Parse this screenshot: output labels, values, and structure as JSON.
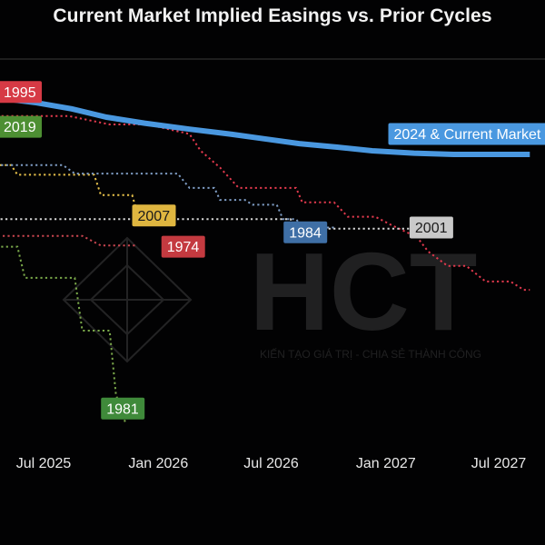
{
  "title": "Current Market Implied Easings vs. Prior Cycles",
  "watermark": {
    "text": "HCT",
    "tagline": "KIẾN TẠO GIÁ TRỊ - CHIA SẺ THÀNH CÔNG"
  },
  "chart_data": {
    "type": "line",
    "title": "Current Market Implied Easings vs. Prior Cycles",
    "xlabel": "",
    "ylabel": "",
    "x_axis": {
      "type": "date",
      "ticks": [
        "2025-07-01",
        "2026-01-01",
        "2026-07-01",
        "2027-01-01",
        "2027-07-01"
      ],
      "tick_labels": [
        "Jul 2025",
        "Jan 2026",
        "Jul 2026",
        "Jan 2027",
        "Jul 2027"
      ]
    },
    "y_axis": {
      "tick_labels_shown": false
    },
    "grid": false,
    "legend": "inline labels",
    "series": [
      {
        "name": "2024 & Current Market",
        "color": "#4a98e0",
        "style": "solid",
        "points": [
          [
            "2024-12-20",
            0.0
          ],
          [
            "2025-03-10",
            0.0
          ],
          [
            "2025-04-20",
            -0.6
          ],
          [
            "2025-06-20",
            -1.0
          ],
          [
            "2025-08-15",
            -1.5
          ],
          [
            "2025-10-10",
            -2.2
          ],
          [
            "2025-12-10",
            -2.7
          ],
          [
            "2026-02-20",
            -3.2
          ],
          [
            "2026-04-25",
            -3.6
          ],
          [
            "2026-06-20",
            -4.0
          ],
          [
            "2026-08-15",
            -4.4
          ],
          [
            "2026-10-15",
            -4.7
          ],
          [
            "2026-12-10",
            -5.0
          ],
          [
            "2027-02-15",
            -5.2
          ],
          [
            "2027-04-20",
            -5.3
          ],
          [
            "2027-08-20",
            -5.3
          ]
        ]
      },
      {
        "name": "1995",
        "color": "#e0394d",
        "style": "dotted",
        "points": [
          [
            "2024-12-20",
            -1.8
          ],
          [
            "2025-02-15",
            -1.8
          ],
          [
            "2025-04-20",
            -2.1
          ],
          [
            "2025-08-10",
            -2.1
          ],
          [
            "2025-10-15",
            -2.8
          ],
          [
            "2025-12-15",
            -2.8
          ],
          [
            "2026-02-20",
            -3.6
          ],
          [
            "2026-03-10",
            -5.0
          ],
          [
            "2026-04-10",
            -6.4
          ],
          [
            "2026-05-10",
            -8.1
          ],
          [
            "2026-08-10",
            -8.1
          ],
          [
            "2026-08-20",
            -9.3
          ],
          [
            "2026-10-10",
            -9.3
          ],
          [
            "2026-11-01",
            -10.5
          ],
          [
            "2026-12-15",
            -10.5
          ],
          [
            "2027-01-10",
            -11.2
          ],
          [
            "2027-02-20",
            -12.2
          ],
          [
            "2027-03-10",
            -13.4
          ],
          [
            "2027-04-10",
            -14.6
          ],
          [
            "2027-05-10",
            -14.6
          ],
          [
            "2027-06-10",
            -15.9
          ],
          [
            "2027-07-20",
            -15.9
          ],
          [
            "2027-08-10",
            -16.6
          ],
          [
            "2027-08-20",
            -16.6
          ]
        ]
      },
      {
        "name": "2019",
        "color": "#5a9e3a",
        "style": "dotted",
        "points": [
          [
            "2024-12-20",
            -3.2
          ],
          [
            "2025-01-10",
            -3.2
          ],
          [
            "2025-01-20",
            -5.3
          ],
          [
            "2025-02-15",
            -5.3
          ]
        ]
      },
      {
        "name": "2007",
        "color": "#e6c04a",
        "style": "dotted",
        "points": [
          [
            "2024-12-20",
            -5.0
          ],
          [
            "2025-02-01",
            -5.0
          ],
          [
            "2025-02-20",
            -6.2
          ],
          [
            "2025-05-10",
            -6.2
          ],
          [
            "2025-05-20",
            -7.0
          ],
          [
            "2025-09-20",
            -7.0
          ],
          [
            "2025-10-01",
            -8.7
          ],
          [
            "2025-11-20",
            -8.7
          ],
          [
            "2025-12-01",
            -10.7
          ],
          [
            "2026-01-10",
            -10.7
          ]
        ]
      },
      {
        "name": "1984",
        "color": "#7e9cc4",
        "style": "dotted",
        "points": [
          [
            "2024-12-20",
            -4.9
          ],
          [
            "2025-03-10",
            -4.9
          ],
          [
            "2025-04-10",
            -6.2
          ],
          [
            "2025-08-01",
            -6.2
          ],
          [
            "2025-08-20",
            -6.9
          ],
          [
            "2026-02-01",
            -6.9
          ],
          [
            "2026-02-20",
            -8.1
          ],
          [
            "2026-04-01",
            -8.1
          ],
          [
            "2026-04-10",
            -9.1
          ],
          [
            "2026-05-20",
            -9.1
          ],
          [
            "2026-06-01",
            -9.5
          ],
          [
            "2026-07-10",
            -9.5
          ],
          [
            "2026-07-20",
            -10.7
          ],
          [
            "2026-08-10",
            -10.7
          ],
          [
            "2026-08-20",
            -11.4
          ],
          [
            "2026-10-10",
            -11.4
          ]
        ]
      },
      {
        "name": "2001",
        "color": "#d6d6d6",
        "style": "dotted",
        "points": [
          [
            "2025-04-15",
            -10.7
          ],
          [
            "2025-09-15",
            -10.7
          ],
          [
            "2026-01-01",
            -10.7
          ],
          [
            "2026-08-01",
            -10.7
          ],
          [
            "2026-08-10",
            -11.5
          ],
          [
            "2027-03-20",
            -11.5
          ]
        ]
      },
      {
        "name": "1974",
        "color": "#c8454f",
        "style": "dotted",
        "points": [
          [
            "2024-12-20",
            -10.0
          ],
          [
            "2025-01-20",
            -11.6
          ],
          [
            "2025-03-01",
            -11.6
          ],
          [
            "2025-04-01",
            -12.1
          ],
          [
            "2025-09-01",
            -12.1
          ],
          [
            "2025-10-01",
            -12.9
          ],
          [
            "2025-11-25",
            -12.9
          ]
        ]
      },
      {
        "name": "1981",
        "color": "#7aa84a",
        "style": "dotted",
        "points": [
          [
            "2024-12-20",
            -10.9
          ],
          [
            "2025-02-20",
            -10.9
          ],
          [
            "2025-03-01",
            -13.0
          ],
          [
            "2025-05-20",
            -13.0
          ],
          [
            "2025-06-01",
            -15.6
          ],
          [
            "2025-08-20",
            -15.6
          ],
          [
            "2025-09-01",
            -20.0
          ],
          [
            "2025-10-15",
            -20.0
          ],
          [
            "2025-10-25",
            -25.3
          ],
          [
            "2025-11-10",
            -27.8
          ]
        ]
      }
    ],
    "labels": [
      {
        "text": "1995",
        "bg": "#d63a45",
        "fg": "#ffffff",
        "at": [
          "2025-01-25",
          -0.1
        ],
        "anchor": "end"
      },
      {
        "text": "2019",
        "bg": "#4d8f33",
        "fg": "#ffffff",
        "at": [
          "2025-02-05",
          -3.0
        ],
        "anchor": "start"
      },
      {
        "text": "2024 & Current Market",
        "bg": "#4a98e0",
        "fg": "#ffffff",
        "at": [
          "2027-01-05",
          -3.6
        ],
        "anchor": "start"
      },
      {
        "text": "2007",
        "bg": "#dfb640",
        "fg": "#1a1a1a",
        "at": [
          "2025-12-25",
          -10.4
        ],
        "anchor": "middle"
      },
      {
        "text": "1984",
        "bg": "#3f6fa6",
        "fg": "#ffffff",
        "at": [
          "2026-08-25",
          -11.8
        ],
        "anchor": "middle"
      },
      {
        "text": "2001",
        "bg": "#c9c9c9",
        "fg": "#1a1a1a",
        "at": [
          "2027-03-15",
          -11.4
        ],
        "anchor": "middle"
      },
      {
        "text": "1974",
        "bg": "#c43a40",
        "fg": "#ffffff",
        "at": [
          "2026-02-10",
          -13.0
        ],
        "anchor": "middle"
      },
      {
        "text": "1981",
        "bg": "#3f8a3a",
        "fg": "#ffffff",
        "at": [
          "2025-11-05",
          -26.5
        ],
        "anchor": "middle"
      }
    ]
  }
}
